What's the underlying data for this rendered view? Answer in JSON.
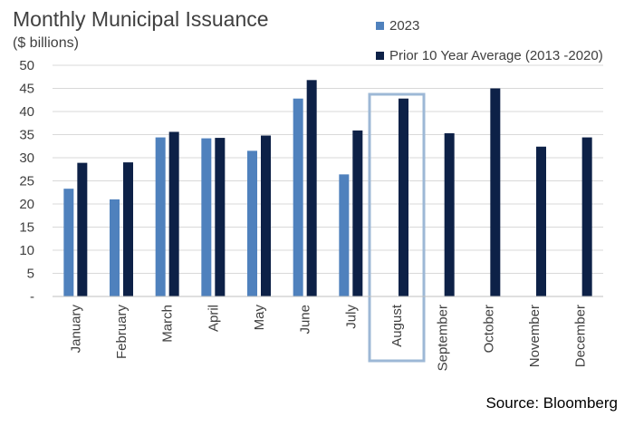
{
  "header": {
    "title": "Monthly Municipal Issuance",
    "subtitle": "($ billions)"
  },
  "footer": {
    "source": "Source: Bloomberg"
  },
  "colors": {
    "series_2023": "#4f81bd",
    "series_avg": "#0d2147",
    "gridline": "#d9d9d9",
    "highlight_box": "#9db8d6"
  },
  "chart_data": {
    "type": "bar",
    "title": "Monthly Municipal Issuance",
    "subtitle": "($ billions)",
    "xlabel": "",
    "ylabel": "",
    "ylim": [
      0,
      50
    ],
    "yticks": [
      0,
      5,
      10,
      15,
      20,
      25,
      30,
      35,
      40,
      45,
      50
    ],
    "yticklabels": [
      "-",
      "5",
      "10",
      "15",
      "20",
      "25",
      "30",
      "35",
      "40",
      "45",
      "50"
    ],
    "grid": true,
    "legend_position": "top-right",
    "highlighted_category": "August",
    "categories": [
      "January",
      "February",
      "March",
      "April",
      "May",
      "June",
      "July",
      "August",
      "September",
      "October",
      "November",
      "December"
    ],
    "series": [
      {
        "name": "2023",
        "values": [
          23.3,
          21.0,
          34.4,
          34.2,
          31.5,
          42.8,
          26.4,
          null,
          null,
          null,
          null,
          null
        ]
      },
      {
        "name": "Prior 10 Year Average (2013 -2020)",
        "values": [
          28.9,
          29.0,
          35.6,
          34.3,
          34.8,
          46.8,
          35.9,
          42.8,
          35.3,
          45.0,
          32.4,
          34.4
        ]
      }
    ]
  }
}
